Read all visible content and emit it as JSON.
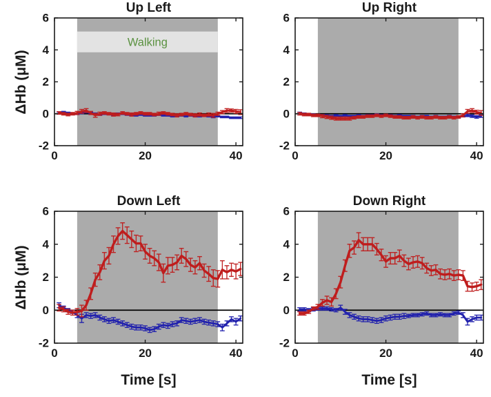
{
  "figure": {
    "walking_label": "Walking",
    "colors": {
      "red_series": "#bf1d1d",
      "blue_series": "#2121ad",
      "shaded_band": "#ababab",
      "walking_label_band": "#e3e3e3",
      "walking_text": "#5a9140",
      "axis": "#1a1a1a",
      "zero_line": "#000000",
      "background": "#ffffff"
    }
  },
  "chart_data": [
    {
      "type": "line",
      "title": "Up Left",
      "xlabel": "",
      "ylabel": "ΔHb (μM)",
      "xlim": [
        0,
        41.5
      ],
      "ylim": [
        -2,
        6
      ],
      "xticks": [
        0,
        20,
        40
      ],
      "yticks": [
        -2,
        0,
        2,
        4,
        6
      ],
      "grid": false,
      "legend": "none",
      "shaded_region": {
        "x0": 5,
        "x1": 36
      },
      "annotation": {
        "text": "Walking",
        "x": 20.5,
        "y": 4.5,
        "band_low": 3.85,
        "band_high": 5.15
      },
      "zero_line": true,
      "x": [
        1,
        2,
        3,
        4,
        5,
        6,
        7,
        8,
        9,
        10,
        11,
        12,
        13,
        14,
        15,
        16,
        17,
        18,
        19,
        20,
        21,
        22,
        23,
        24,
        25,
        26,
        27,
        28,
        29,
        30,
        31,
        32,
        33,
        34,
        35,
        36,
        37,
        38,
        39,
        40,
        41
      ],
      "series": [
        {
          "name": "red",
          "color": "#bf1d1d",
          "linewidth": 3,
          "values": [
            0.05,
            0.0,
            -0.05,
            0.0,
            0.05,
            0.15,
            0.2,
            0.05,
            -0.1,
            0.0,
            0.05,
            0.0,
            -0.05,
            -0.05,
            0.05,
            0.0,
            -0.05,
            0.0,
            0.05,
            0.0,
            0.0,
            -0.05,
            0.0,
            0.05,
            0.0,
            -0.05,
            -0.1,
            -0.05,
            0.0,
            -0.05,
            -0.1,
            -0.05,
            -0.1,
            -0.05,
            -0.1,
            0.0,
            0.1,
            0.2,
            0.2,
            0.15,
            0.1
          ],
          "err": [
            0.08,
            0.08,
            0.08,
            0.08,
            0.1,
            0.12,
            0.12,
            0.1,
            0.12,
            0.1,
            0.08,
            0.08,
            0.1,
            0.08,
            0.08,
            0.08,
            0.1,
            0.08,
            0.08,
            0.08,
            0.08,
            0.08,
            0.1,
            0.08,
            0.08,
            0.08,
            0.1,
            0.08,
            0.08,
            0.08,
            0.1,
            0.1,
            0.08,
            0.1,
            0.12,
            0.1,
            0.1,
            0.12,
            0.1,
            0.12,
            0.15
          ]
        },
        {
          "name": "blue",
          "color": "#2121ad",
          "linewidth": 2.6,
          "values": [
            0.05,
            0.1,
            0.05,
            0.0,
            0.0,
            0.05,
            0.1,
            0.05,
            0.0,
            -0.05,
            0.0,
            0.0,
            -0.05,
            0.0,
            0.0,
            -0.05,
            -0.05,
            -0.1,
            -0.05,
            -0.1,
            -0.1,
            -0.1,
            -0.05,
            -0.1,
            -0.1,
            -0.15,
            -0.1,
            -0.1,
            -0.15,
            -0.1,
            -0.15,
            -0.15,
            -0.1,
            -0.15,
            -0.2,
            -0.15,
            -0.2,
            -0.2,
            -0.25,
            -0.25,
            -0.25
          ],
          "err": [
            0.05,
            0.05,
            0.05,
            0.05,
            0.05,
            0.05,
            0.05,
            0.05,
            0.05,
            0.05,
            0.05,
            0.05,
            0.05,
            0.05,
            0.05,
            0.05,
            0.05,
            0.05,
            0.05,
            0.05,
            0.05,
            0.05,
            0.05,
            0.05,
            0.05,
            0.05,
            0.05,
            0.05,
            0.05,
            0.05,
            0.05,
            0.05,
            0.05,
            0.05,
            0.05,
            0.05,
            0.05,
            0.05,
            0.05,
            0.05,
            0.05
          ]
        }
      ]
    },
    {
      "type": "line",
      "title": "Up Right",
      "xlabel": "",
      "ylabel": "",
      "xlim": [
        0,
        41.5
      ],
      "ylim": [
        -2,
        6
      ],
      "xticks": [
        0,
        20,
        40
      ],
      "yticks": [
        -2,
        0,
        2,
        4,
        6
      ],
      "grid": false,
      "legend": "none",
      "shaded_region": {
        "x0": 5,
        "x1": 36
      },
      "zero_line": true,
      "x": [
        1,
        2,
        3,
        4,
        5,
        6,
        7,
        8,
        9,
        10,
        11,
        12,
        13,
        14,
        15,
        16,
        17,
        18,
        19,
        20,
        21,
        22,
        23,
        24,
        25,
        26,
        27,
        28,
        29,
        30,
        31,
        32,
        33,
        34,
        35,
        36,
        37,
        38,
        39,
        40,
        41
      ],
      "series": [
        {
          "name": "red",
          "color": "#bf1d1d",
          "linewidth": 3,
          "values": [
            0.0,
            -0.05,
            -0.05,
            -0.1,
            -0.1,
            -0.15,
            -0.2,
            -0.25,
            -0.3,
            -0.3,
            -0.3,
            -0.3,
            -0.25,
            -0.2,
            -0.2,
            -0.15,
            -0.15,
            -0.1,
            -0.15,
            -0.1,
            -0.15,
            -0.2,
            -0.2,
            -0.25,
            -0.25,
            -0.2,
            -0.25,
            -0.2,
            -0.25,
            -0.25,
            -0.2,
            -0.25,
            -0.25,
            -0.2,
            -0.25,
            -0.2,
            -0.1,
            0.15,
            0.2,
            0.1,
            0.05
          ],
          "err": [
            0.08,
            0.08,
            0.08,
            0.08,
            0.08,
            0.1,
            0.1,
            0.1,
            0.1,
            0.1,
            0.1,
            0.1,
            0.08,
            0.08,
            0.08,
            0.08,
            0.08,
            0.08,
            0.08,
            0.08,
            0.08,
            0.08,
            0.08,
            0.08,
            0.08,
            0.08,
            0.08,
            0.08,
            0.08,
            0.08,
            0.08,
            0.08,
            0.08,
            0.08,
            0.08,
            0.08,
            0.1,
            0.12,
            0.12,
            0.12,
            0.15
          ]
        },
        {
          "name": "blue",
          "color": "#2121ad",
          "linewidth": 2.6,
          "values": [
            0.05,
            0.0,
            -0.05,
            -0.05,
            -0.1,
            -0.1,
            -0.1,
            -0.15,
            -0.1,
            -0.15,
            -0.1,
            -0.15,
            -0.15,
            -0.1,
            -0.15,
            -0.1,
            -0.1,
            -0.05,
            -0.1,
            -0.1,
            -0.1,
            -0.15,
            -0.1,
            -0.15,
            -0.15,
            -0.15,
            -0.2,
            -0.15,
            -0.15,
            -0.2,
            -0.15,
            -0.2,
            -0.2,
            -0.15,
            -0.2,
            -0.2,
            -0.15,
            -0.1,
            -0.15,
            -0.2,
            -0.15
          ],
          "err": [
            0.05,
            0.05,
            0.05,
            0.05,
            0.05,
            0.05,
            0.05,
            0.05,
            0.05,
            0.05,
            0.05,
            0.05,
            0.05,
            0.05,
            0.05,
            0.05,
            0.05,
            0.05,
            0.05,
            0.05,
            0.05,
            0.05,
            0.05,
            0.05,
            0.05,
            0.05,
            0.05,
            0.05,
            0.05,
            0.05,
            0.05,
            0.05,
            0.05,
            0.05,
            0.05,
            0.05,
            0.05,
            0.08,
            0.08,
            0.08,
            0.08
          ]
        }
      ]
    },
    {
      "type": "line",
      "title": "Down Left",
      "xlabel": "Time [s]",
      "ylabel": "ΔHb (μM)",
      "xlim": [
        0,
        41.5
      ],
      "ylim": [
        -2,
        6
      ],
      "xticks": [
        0,
        20,
        40
      ],
      "yticks": [
        -2,
        0,
        2,
        4,
        6
      ],
      "grid": false,
      "legend": "none",
      "shaded_region": {
        "x0": 5,
        "x1": 36
      },
      "zero_line": true,
      "x": [
        1,
        2,
        3,
        4,
        5,
        6,
        7,
        8,
        9,
        10,
        11,
        12,
        13,
        14,
        15,
        16,
        17,
        18,
        19,
        20,
        21,
        22,
        23,
        24,
        25,
        26,
        27,
        28,
        29,
        30,
        31,
        32,
        33,
        34,
        35,
        36,
        37,
        38,
        39,
        40,
        41
      ],
      "series": [
        {
          "name": "red",
          "color": "#bf1d1d",
          "linewidth": 3.4,
          "values": [
            0.15,
            0.05,
            -0.1,
            -0.15,
            -0.1,
            -0.05,
            0.3,
            1.0,
            1.85,
            2.3,
            3.0,
            3.3,
            4.0,
            4.5,
            4.8,
            4.55,
            4.3,
            4.05,
            4.05,
            3.55,
            3.3,
            3.15,
            2.9,
            2.25,
            2.7,
            2.75,
            2.9,
            3.3,
            3.1,
            2.75,
            2.6,
            2.85,
            2.4,
            2.2,
            1.95,
            1.9,
            2.45,
            2.3,
            2.45,
            2.35,
            2.5
          ],
          "err": [
            0.2,
            0.15,
            0.15,
            0.15,
            0.2,
            0.35,
            0.3,
            0.35,
            0.4,
            0.45,
            0.5,
            0.5,
            0.5,
            0.5,
            0.5,
            0.5,
            0.5,
            0.5,
            0.45,
            0.45,
            0.45,
            0.45,
            0.5,
            0.55,
            0.5,
            0.45,
            0.45,
            0.45,
            0.45,
            0.4,
            0.4,
            0.4,
            0.4,
            0.45,
            0.5,
            0.5,
            0.55,
            0.4,
            0.4,
            0.45,
            0.4
          ]
        },
        {
          "name": "blue",
          "color": "#2121ad",
          "linewidth": 2.8,
          "values": [
            0.3,
            0.15,
            0.0,
            -0.1,
            -0.3,
            -0.5,
            -0.3,
            -0.35,
            -0.3,
            -0.45,
            -0.55,
            -0.65,
            -0.6,
            -0.7,
            -0.8,
            -0.9,
            -1.0,
            -1.05,
            -1.05,
            -1.1,
            -1.2,
            -1.15,
            -1.0,
            -0.9,
            -0.95,
            -0.85,
            -0.8,
            -0.6,
            -0.65,
            -0.7,
            -0.65,
            -0.6,
            -0.7,
            -0.75,
            -0.8,
            -0.85,
            -1.05,
            -0.8,
            -0.55,
            -0.7,
            -0.5
          ],
          "err": [
            0.15,
            0.1,
            0.1,
            0.1,
            0.15,
            0.25,
            0.15,
            0.15,
            0.15,
            0.15,
            0.15,
            0.15,
            0.15,
            0.15,
            0.15,
            0.15,
            0.15,
            0.15,
            0.15,
            0.15,
            0.15,
            0.15,
            0.15,
            0.15,
            0.15,
            0.15,
            0.15,
            0.15,
            0.15,
            0.15,
            0.15,
            0.15,
            0.15,
            0.15,
            0.15,
            0.15,
            0.2,
            0.15,
            0.15,
            0.2,
            0.15
          ]
        }
      ]
    },
    {
      "type": "line",
      "title": "Down Right",
      "xlabel": "Time [s]",
      "ylabel": "",
      "xlim": [
        0,
        41.5
      ],
      "ylim": [
        -2,
        6
      ],
      "xticks": [
        0,
        20,
        40
      ],
      "yticks": [
        -2,
        0,
        2,
        4,
        6
      ],
      "grid": false,
      "legend": "none",
      "shaded_region": {
        "x0": 5,
        "x1": 36
      },
      "zero_line": true,
      "x": [
        1,
        2,
        3,
        4,
        5,
        6,
        7,
        8,
        9,
        10,
        11,
        12,
        13,
        14,
        15,
        16,
        17,
        18,
        19,
        20,
        21,
        22,
        23,
        24,
        25,
        26,
        27,
        28,
        29,
        30,
        31,
        32,
        33,
        34,
        35,
        36,
        37,
        38,
        39,
        40,
        41
      ],
      "series": [
        {
          "name": "red",
          "color": "#bf1d1d",
          "linewidth": 3.4,
          "values": [
            -0.2,
            -0.2,
            -0.1,
            0.1,
            0.2,
            0.45,
            0.6,
            0.5,
            1.0,
            1.7,
            2.7,
            3.6,
            3.8,
            4.25,
            4.0,
            4.0,
            4.0,
            3.7,
            3.35,
            2.95,
            3.15,
            3.15,
            3.3,
            3.0,
            2.8,
            2.9,
            2.95,
            2.85,
            2.55,
            2.4,
            2.45,
            2.2,
            2.15,
            2.2,
            2.1,
            2.15,
            2.1,
            1.45,
            1.4,
            1.45,
            1.55
          ],
          "err": [
            0.1,
            0.1,
            0.1,
            0.1,
            0.15,
            0.2,
            0.25,
            0.25,
            0.3,
            0.35,
            0.35,
            0.4,
            0.4,
            0.45,
            0.4,
            0.4,
            0.4,
            0.35,
            0.35,
            0.35,
            0.35,
            0.35,
            0.35,
            0.35,
            0.35,
            0.35,
            0.35,
            0.35,
            0.3,
            0.3,
            0.3,
            0.3,
            0.3,
            0.3,
            0.3,
            0.3,
            0.3,
            0.3,
            0.25,
            0.25,
            0.3
          ]
        },
        {
          "name": "blue",
          "color": "#2121ad",
          "linewidth": 2.8,
          "values": [
            0.05,
            0.05,
            0.0,
            0.05,
            0.1,
            0.1,
            0.1,
            0.05,
            0.0,
            0.15,
            -0.1,
            -0.3,
            -0.4,
            -0.5,
            -0.55,
            -0.55,
            -0.6,
            -0.65,
            -0.6,
            -0.5,
            -0.45,
            -0.4,
            -0.4,
            -0.35,
            -0.35,
            -0.3,
            -0.3,
            -0.25,
            -0.2,
            -0.3,
            -0.3,
            -0.25,
            -0.3,
            -0.3,
            -0.2,
            -0.15,
            -0.3,
            -0.7,
            -0.55,
            -0.45,
            -0.45
          ],
          "err": [
            0.1,
            0.1,
            0.1,
            0.1,
            0.1,
            0.1,
            0.1,
            0.1,
            0.1,
            0.15,
            0.15,
            0.15,
            0.15,
            0.15,
            0.15,
            0.15,
            0.15,
            0.15,
            0.15,
            0.15,
            0.15,
            0.15,
            0.15,
            0.15,
            0.1,
            0.1,
            0.1,
            0.1,
            0.1,
            0.1,
            0.1,
            0.1,
            0.1,
            0.1,
            0.1,
            0.1,
            0.15,
            0.2,
            0.15,
            0.15,
            0.15
          ]
        }
      ]
    }
  ]
}
